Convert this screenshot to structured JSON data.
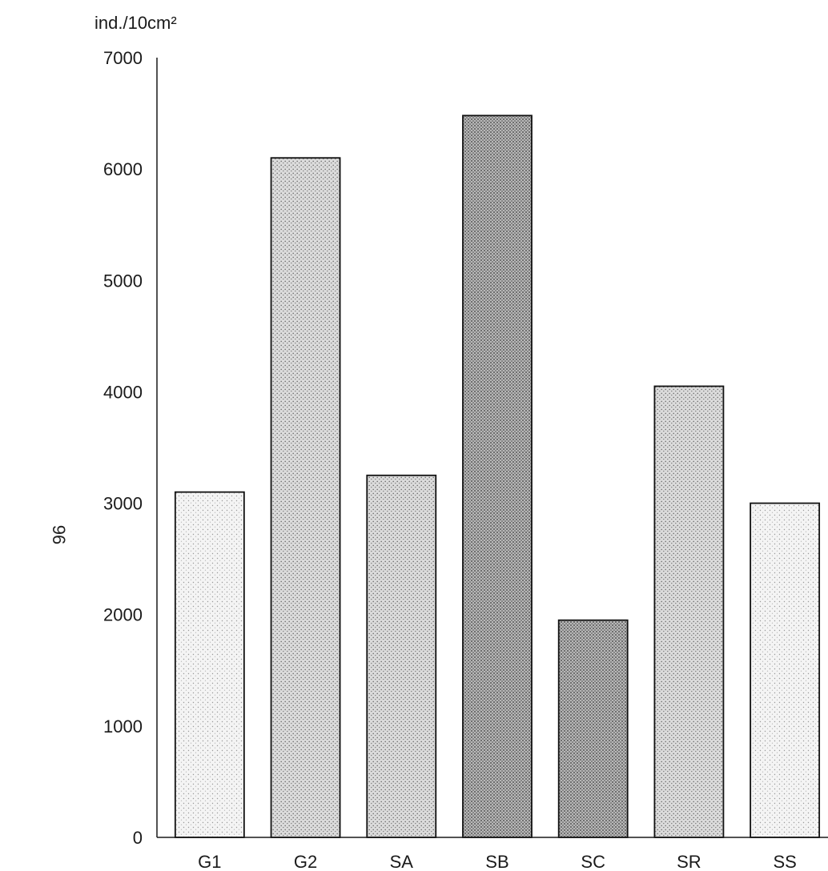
{
  "page": {
    "page_number": "96"
  },
  "chart_data": {
    "type": "bar",
    "title": "",
    "xlabel": "",
    "ylabel": "ind./10cm²",
    "categories": [
      "G1",
      "G2",
      "SA",
      "SB",
      "SC",
      "SR",
      "SS"
    ],
    "values": [
      3100,
      6100,
      3250,
      6480,
      1950,
      4050,
      3000
    ],
    "ylim": [
      0,
      7000
    ],
    "yticks": [
      0,
      1000,
      2000,
      3000,
      4000,
      5000,
      6000,
      7000
    ],
    "grid": false,
    "legend": "none",
    "colors": {
      "axis": "#1a1a1a",
      "bar_outline": "#111111",
      "bar_stipple": "#6b6b6b",
      "bar_stipple_dark": "#3a3a3a"
    }
  }
}
